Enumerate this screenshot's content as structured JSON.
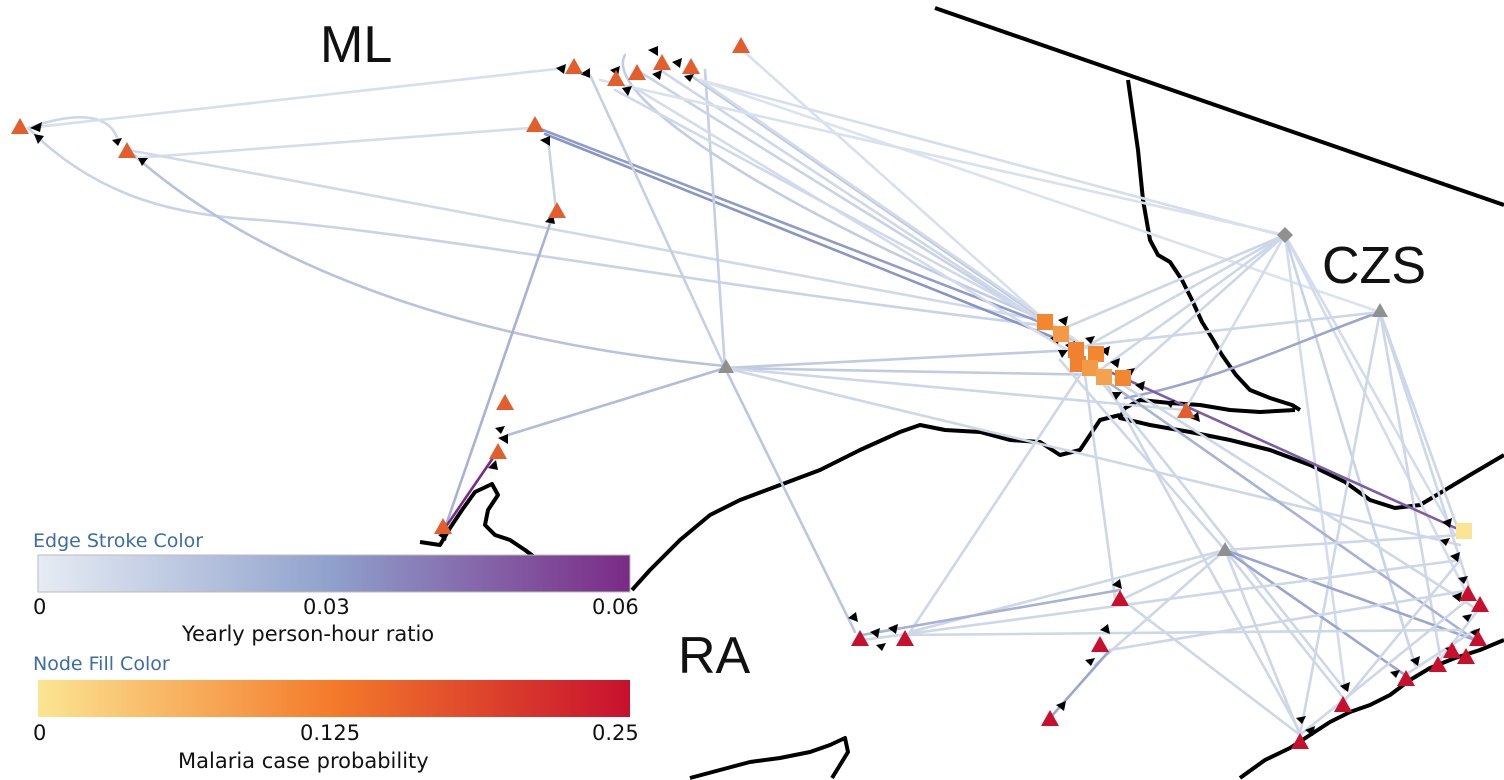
{
  "regions": [
    "ML",
    "CZS",
    "RA"
  ],
  "legend": {
    "edge": {
      "title": "Edge Stroke Color",
      "ticks": [
        "0",
        "0.03",
        "0.06"
      ],
      "label": "Yearly person-hour ratio",
      "colors": [
        "#e6ecf4",
        "#8fa0cc",
        "#7a2a86"
      ]
    },
    "node": {
      "title": "Node Fill Color",
      "ticks": [
        "0",
        "0.125",
        "0.25"
      ],
      "label": "Malaria case probability",
      "colors": [
        "#fbe592",
        "#f47a2a",
        "#c8102e"
      ]
    }
  },
  "colors": {
    "border": "#000000",
    "hub_node": "#909090",
    "arrow": "#000000",
    "background": "#ffffff"
  },
  "node_symbols": {
    "triangle": "locality",
    "square": "settlement",
    "diamond": "hub"
  }
}
